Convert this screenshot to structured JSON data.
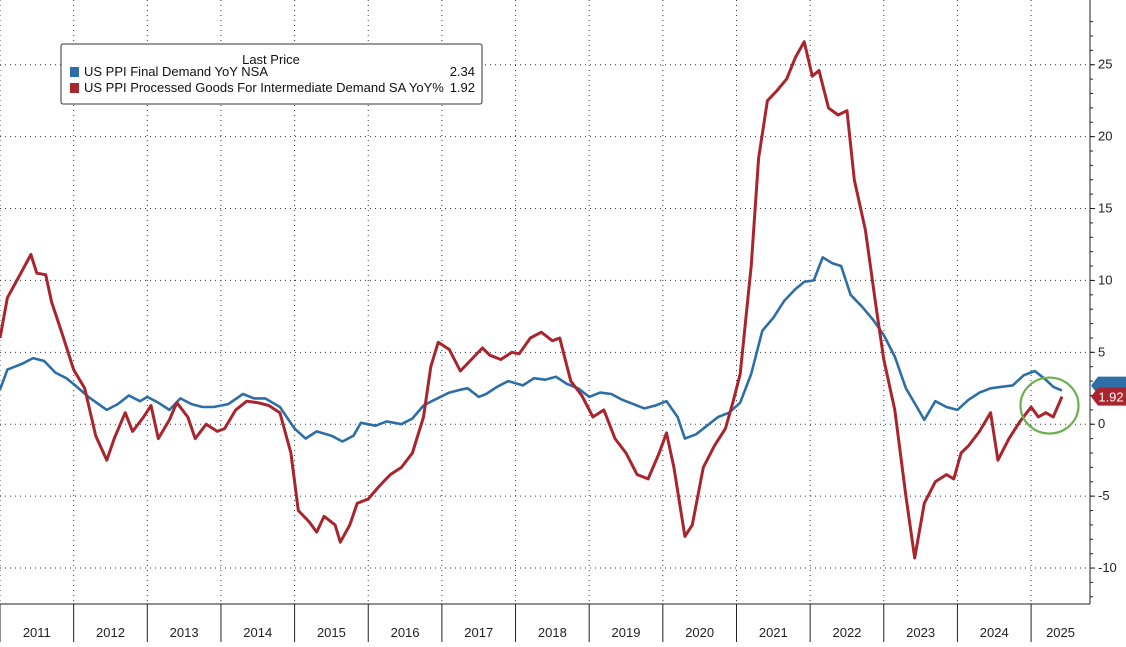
{
  "chart_data": {
    "type": "line",
    "title": "",
    "legend_title": "Last Price",
    "legend_placement": "top-left",
    "grid": true,
    "ylim": [
      -12.5,
      29.5
    ],
    "xlim": [
      2011.0,
      2025.8
    ],
    "yticks": [
      -10,
      -5,
      0,
      5,
      10,
      15,
      20,
      25
    ],
    "ytick_labels": [
      "-10",
      "-5",
      "0",
      "5",
      "10",
      "15",
      "20",
      "25"
    ],
    "year_labels": [
      "2011",
      "2012",
      "2013",
      "2014",
      "2015",
      "2016",
      "2017",
      "2018",
      "2019",
      "2020",
      "2021",
      "2022",
      "2023",
      "2024",
      "2025"
    ],
    "series": [
      {
        "name": "US PPI Final Demand YoY NSA",
        "last": "2.34",
        "color": "#2e6ea6",
        "points": [
          [
            2011.0,
            2.4
          ],
          [
            2011.1,
            3.8
          ],
          [
            2011.3,
            4.2
          ],
          [
            2011.45,
            4.6
          ],
          [
            2011.6,
            4.4
          ],
          [
            2011.75,
            3.6
          ],
          [
            2011.9,
            3.2
          ],
          [
            2012.0,
            2.8
          ],
          [
            2012.2,
            1.9
          ],
          [
            2012.45,
            1.0
          ],
          [
            2012.6,
            1.4
          ],
          [
            2012.75,
            2.0
          ],
          [
            2012.9,
            1.6
          ],
          [
            2013.0,
            1.9
          ],
          [
            2013.15,
            1.5
          ],
          [
            2013.3,
            1.0
          ],
          [
            2013.45,
            1.8
          ],
          [
            2013.6,
            1.4
          ],
          [
            2013.75,
            1.2
          ],
          [
            2013.9,
            1.2
          ],
          [
            2014.1,
            1.4
          ],
          [
            2014.3,
            2.1
          ],
          [
            2014.45,
            1.8
          ],
          [
            2014.6,
            1.8
          ],
          [
            2014.8,
            1.2
          ],
          [
            2015.0,
            -0.3
          ],
          [
            2015.15,
            -1.0
          ],
          [
            2015.3,
            -0.5
          ],
          [
            2015.5,
            -0.8
          ],
          [
            2015.65,
            -1.2
          ],
          [
            2015.8,
            -0.8
          ],
          [
            2015.9,
            0.1
          ],
          [
            2016.1,
            -0.1
          ],
          [
            2016.25,
            0.2
          ],
          [
            2016.45,
            0.0
          ],
          [
            2016.6,
            0.4
          ],
          [
            2016.75,
            1.3
          ],
          [
            2016.9,
            1.7
          ],
          [
            2017.1,
            2.2
          ],
          [
            2017.25,
            2.4
          ],
          [
            2017.35,
            2.5
          ],
          [
            2017.5,
            1.9
          ],
          [
            2017.6,
            2.1
          ],
          [
            2017.75,
            2.6
          ],
          [
            2017.9,
            3.0
          ],
          [
            2018.1,
            2.7
          ],
          [
            2018.25,
            3.2
          ],
          [
            2018.4,
            3.1
          ],
          [
            2018.55,
            3.3
          ],
          [
            2018.7,
            2.8
          ],
          [
            2018.85,
            2.5
          ],
          [
            2019.0,
            1.9
          ],
          [
            2019.15,
            2.2
          ],
          [
            2019.3,
            2.1
          ],
          [
            2019.45,
            1.7
          ],
          [
            2019.6,
            1.4
          ],
          [
            2019.75,
            1.1
          ],
          [
            2019.9,
            1.3
          ],
          [
            2020.05,
            1.6
          ],
          [
            2020.2,
            0.5
          ],
          [
            2020.3,
            -1.0
          ],
          [
            2020.45,
            -0.7
          ],
          [
            2020.6,
            -0.1
          ],
          [
            2020.75,
            0.5
          ],
          [
            2020.9,
            0.8
          ],
          [
            2021.05,
            1.5
          ],
          [
            2021.2,
            3.5
          ],
          [
            2021.35,
            6.5
          ],
          [
            2021.5,
            7.4
          ],
          [
            2021.65,
            8.6
          ],
          [
            2021.8,
            9.4
          ],
          [
            2021.92,
            9.9
          ],
          [
            2022.05,
            10.0
          ],
          [
            2022.17,
            11.6
          ],
          [
            2022.3,
            11.2
          ],
          [
            2022.42,
            11.0
          ],
          [
            2022.55,
            9.0
          ],
          [
            2022.7,
            8.2
          ],
          [
            2022.85,
            7.3
          ],
          [
            2023.0,
            6.2
          ],
          [
            2023.15,
            4.7
          ],
          [
            2023.3,
            2.5
          ],
          [
            2023.45,
            1.2
          ],
          [
            2023.55,
            0.3
          ],
          [
            2023.7,
            1.6
          ],
          [
            2023.85,
            1.2
          ],
          [
            2024.0,
            1.0
          ],
          [
            2024.15,
            1.7
          ],
          [
            2024.3,
            2.2
          ],
          [
            2024.45,
            2.5
          ],
          [
            2024.6,
            2.6
          ],
          [
            2024.75,
            2.7
          ],
          [
            2024.9,
            3.4
          ],
          [
            2025.05,
            3.7
          ],
          [
            2025.2,
            3.1
          ],
          [
            2025.3,
            2.6
          ],
          [
            2025.42,
            2.34
          ]
        ]
      },
      {
        "name": "US PPI Processed Goods For Intermediate Demand SA YoY%",
        "last": "1.92",
        "color": "#a9252e",
        "points": [
          [
            2011.0,
            6.0
          ],
          [
            2011.1,
            8.8
          ],
          [
            2011.25,
            10.2
          ],
          [
            2011.42,
            11.8
          ],
          [
            2011.5,
            10.5
          ],
          [
            2011.62,
            10.4
          ],
          [
            2011.7,
            8.5
          ],
          [
            2011.85,
            6.2
          ],
          [
            2012.0,
            3.8
          ],
          [
            2012.15,
            2.5
          ],
          [
            2012.3,
            -0.8
          ],
          [
            2012.45,
            -2.5
          ],
          [
            2012.55,
            -1.0
          ],
          [
            2012.7,
            0.8
          ],
          [
            2012.8,
            -0.5
          ],
          [
            2012.95,
            0.5
          ],
          [
            2013.05,
            1.3
          ],
          [
            2013.15,
            -1.0
          ],
          [
            2013.3,
            0.3
          ],
          [
            2013.4,
            1.5
          ],
          [
            2013.55,
            0.5
          ],
          [
            2013.65,
            -1.0
          ],
          [
            2013.8,
            0.0
          ],
          [
            2013.95,
            -0.5
          ],
          [
            2014.05,
            -0.3
          ],
          [
            2014.2,
            1.0
          ],
          [
            2014.35,
            1.6
          ],
          [
            2014.5,
            1.5
          ],
          [
            2014.65,
            1.3
          ],
          [
            2014.8,
            0.8
          ],
          [
            2014.95,
            -2.0
          ],
          [
            2015.05,
            -6.0
          ],
          [
            2015.2,
            -6.8
          ],
          [
            2015.3,
            -7.5
          ],
          [
            2015.4,
            -6.4
          ],
          [
            2015.55,
            -7.0
          ],
          [
            2015.62,
            -8.2
          ],
          [
            2015.75,
            -7.0
          ],
          [
            2015.85,
            -5.5
          ],
          [
            2016.0,
            -5.2
          ],
          [
            2016.15,
            -4.3
          ],
          [
            2016.3,
            -3.5
          ],
          [
            2016.45,
            -3.0
          ],
          [
            2016.6,
            -2.0
          ],
          [
            2016.75,
            0.5
          ],
          [
            2016.85,
            4.0
          ],
          [
            2016.95,
            5.7
          ],
          [
            2017.1,
            5.2
          ],
          [
            2017.25,
            3.7
          ],
          [
            2017.4,
            4.5
          ],
          [
            2017.55,
            5.3
          ],
          [
            2017.65,
            4.8
          ],
          [
            2017.8,
            4.5
          ],
          [
            2017.95,
            5.0
          ],
          [
            2018.05,
            4.9
          ],
          [
            2018.2,
            6.0
          ],
          [
            2018.35,
            6.4
          ],
          [
            2018.5,
            5.8
          ],
          [
            2018.6,
            6.0
          ],
          [
            2018.75,
            3.0
          ],
          [
            2018.9,
            2.0
          ],
          [
            2019.05,
            0.5
          ],
          [
            2019.2,
            1.0
          ],
          [
            2019.35,
            -1.0
          ],
          [
            2019.5,
            -2.0
          ],
          [
            2019.65,
            -3.5
          ],
          [
            2019.8,
            -3.8
          ],
          [
            2019.95,
            -2.0
          ],
          [
            2020.05,
            -0.6
          ],
          [
            2020.15,
            -3.0
          ],
          [
            2020.3,
            -7.8
          ],
          [
            2020.4,
            -7.0
          ],
          [
            2020.55,
            -3.0
          ],
          [
            2020.7,
            -1.5
          ],
          [
            2020.85,
            -0.3
          ],
          [
            2020.95,
            1.5
          ],
          [
            2021.05,
            3.5
          ],
          [
            2021.2,
            11.0
          ],
          [
            2021.3,
            18.5
          ],
          [
            2021.42,
            22.5
          ],
          [
            2021.55,
            23.2
          ],
          [
            2021.68,
            24.0
          ],
          [
            2021.8,
            25.5
          ],
          [
            2021.92,
            26.6
          ],
          [
            2022.03,
            24.2
          ],
          [
            2022.12,
            24.6
          ],
          [
            2022.25,
            22.0
          ],
          [
            2022.38,
            21.5
          ],
          [
            2022.5,
            21.8
          ],
          [
            2022.6,
            17.0
          ],
          [
            2022.75,
            13.5
          ],
          [
            2022.9,
            8.0
          ],
          [
            2023.0,
            4.5
          ],
          [
            2023.15,
            1.0
          ],
          [
            2023.3,
            -5.0
          ],
          [
            2023.42,
            -9.3
          ],
          [
            2023.55,
            -5.5
          ],
          [
            2023.7,
            -4.0
          ],
          [
            2023.85,
            -3.5
          ],
          [
            2023.95,
            -3.8
          ],
          [
            2024.05,
            -2.0
          ],
          [
            2024.15,
            -1.5
          ],
          [
            2024.3,
            -0.5
          ],
          [
            2024.45,
            0.8
          ],
          [
            2024.55,
            -2.5
          ],
          [
            2024.7,
            -1.0
          ],
          [
            2024.85,
            0.2
          ],
          [
            2025.0,
            1.2
          ],
          [
            2025.1,
            0.5
          ],
          [
            2025.2,
            0.8
          ],
          [
            2025.3,
            0.5
          ],
          [
            2025.42,
            1.92
          ]
        ]
      }
    ],
    "annotations": [
      {
        "type": "circle",
        "label": "",
        "color": "#6ab04c",
        "center": [
          2025.25,
          1.3
        ]
      }
    ]
  }
}
